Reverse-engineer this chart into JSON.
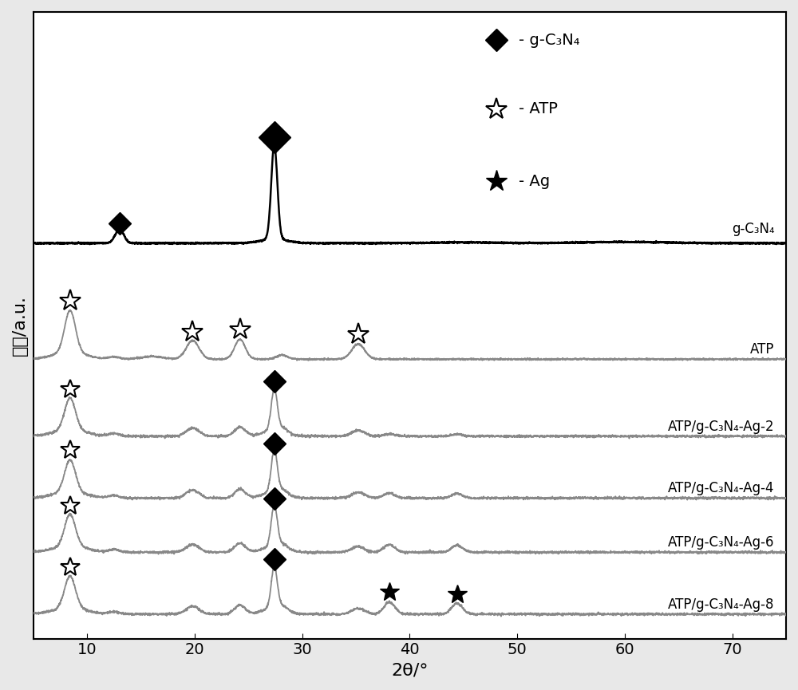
{
  "xlim": [
    5,
    75
  ],
  "xlabel": "2θ/°",
  "ylabel": "强度/a.u.",
  "background_color": "#e8e8e8",
  "plot_bg_color": "#ffffff",
  "curve_labels": [
    "g-C₃N₄",
    "ATP",
    "ATP/g-C₃N₄-Ag-2",
    "ATP/g-C₃N₄-Ag-4",
    "ATP/g-C₃N₄-Ag-6",
    "ATP/g-C₃N₄-Ag-8"
  ],
  "curve_colors": [
    "#000000",
    "#888888",
    "#888888",
    "#888888",
    "#888888",
    "#888888"
  ],
  "offsets": [
    4.8,
    3.3,
    2.3,
    1.5,
    0.8,
    0.0
  ],
  "noise_scale": 0.03,
  "atp_peaks": [
    8.4,
    19.8,
    24.2,
    35.2
  ],
  "gcn4_peaks": [
    13.0,
    27.4
  ],
  "ag_peaks": [
    38.1,
    44.4
  ],
  "tick_fontsize": 14,
  "label_fontsize": 16,
  "curve_label_fontsize": 12
}
